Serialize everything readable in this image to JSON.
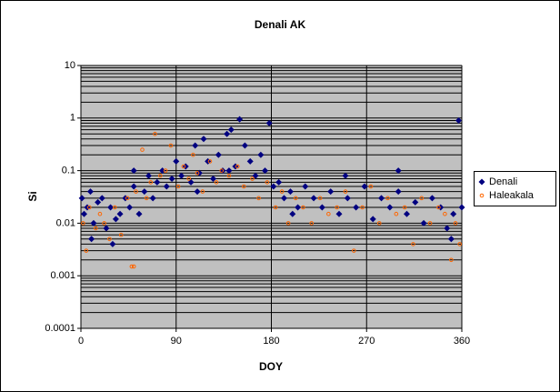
{
  "chart_data": {
    "type": "scatter",
    "title": "Denali AK",
    "x_label": "DOY",
    "y_label": "Si",
    "log_y": true,
    "grid": true,
    "legend": "right",
    "xlim": [
      0,
      360
    ],
    "xticks": [
      0,
      90,
      180,
      270,
      360
    ],
    "ylim": [
      0.0001,
      10
    ],
    "yticks": [
      10,
      1,
      0.1,
      0.01,
      0.001,
      0.0001
    ],
    "series": [
      {
        "name": "Denali",
        "color": "#000080",
        "marker": "diamond",
        "x": [
          1,
          3,
          6,
          9,
          12,
          16,
          20,
          24,
          28,
          33,
          37,
          42,
          46,
          50,
          55,
          60,
          64,
          68,
          72,
          77,
          81,
          86,
          90,
          95,
          99,
          104,
          108,
          112,
          116,
          120,
          125,
          130,
          134,
          138,
          142,
          146,
          150,
          155,
          160,
          165,
          170,
          174,
          178,
          182,
          187,
          192,
          198,
          205,
          212,
          220,
          228,
          236,
          244,
          252,
          260,
          268,
          276,
          284,
          292,
          300,
          308,
          316,
          324,
          332,
          340,
          346,
          352,
          357,
          360,
          10,
          30,
          50,
          110,
          140,
          200,
          250,
          300,
          350
        ],
        "values": [
          0.03,
          0.015,
          0.02,
          0.04,
          0.01,
          0.025,
          0.03,
          0.008,
          0.02,
          0.012,
          0.015,
          0.03,
          0.02,
          0.05,
          0.015,
          0.04,
          0.08,
          0.03,
          0.06,
          0.1,
          0.05,
          0.07,
          0.15,
          0.08,
          0.12,
          0.06,
          0.3,
          0.09,
          0.4,
          0.15,
          0.07,
          0.2,
          0.1,
          0.5,
          0.6,
          0.12,
          0.95,
          0.3,
          0.15,
          0.08,
          0.2,
          0.1,
          0.8,
          0.05,
          0.06,
          0.03,
          0.04,
          0.02,
          0.05,
          0.03,
          0.02,
          0.04,
          0.015,
          0.03,
          0.02,
          0.05,
          0.012,
          0.03,
          0.02,
          0.04,
          0.015,
          0.025,
          0.01,
          0.03,
          0.02,
          0.008,
          0.015,
          0.9,
          0.02,
          0.005,
          0.004,
          0.1,
          0.04,
          0.1,
          0.015,
          0.08,
          0.1,
          0.005
        ]
      },
      {
        "name": "Haleakala",
        "color": "#ff6600",
        "marker": "circle",
        "x": [
          2,
          5,
          8,
          14,
          18,
          22,
          27,
          32,
          38,
          44,
          48,
          52,
          58,
          62,
          66,
          70,
          75,
          80,
          85,
          92,
          97,
          102,
          106,
          110,
          115,
          122,
          128,
          133,
          140,
          148,
          154,
          162,
          168,
          176,
          184,
          190,
          196,
          203,
          210,
          218,
          226,
          234,
          242,
          250,
          258,
          266,
          274,
          282,
          290,
          298,
          306,
          314,
          322,
          330,
          338,
          344,
          350,
          354,
          358,
          50
        ],
        "values": [
          0.01,
          0.003,
          0.02,
          0.008,
          0.015,
          0.01,
          0.005,
          0.02,
          0.006,
          0.03,
          0.0015,
          0.04,
          0.25,
          0.03,
          0.06,
          0.5,
          0.08,
          0.1,
          0.3,
          0.05,
          0.12,
          0.07,
          0.2,
          0.09,
          0.04,
          0.15,
          0.06,
          0.1,
          0.08,
          0.12,
          0.05,
          0.07,
          0.03,
          0.06,
          0.02,
          0.04,
          0.01,
          0.03,
          0.02,
          0.01,
          0.03,
          0.015,
          0.02,
          0.04,
          0.003,
          0.02,
          0.05,
          0.01,
          0.03,
          0.015,
          0.02,
          0.004,
          0.03,
          0.01,
          0.02,
          0.015,
          0.002,
          0.01,
          0.004,
          0.0015
        ]
      }
    ]
  }
}
